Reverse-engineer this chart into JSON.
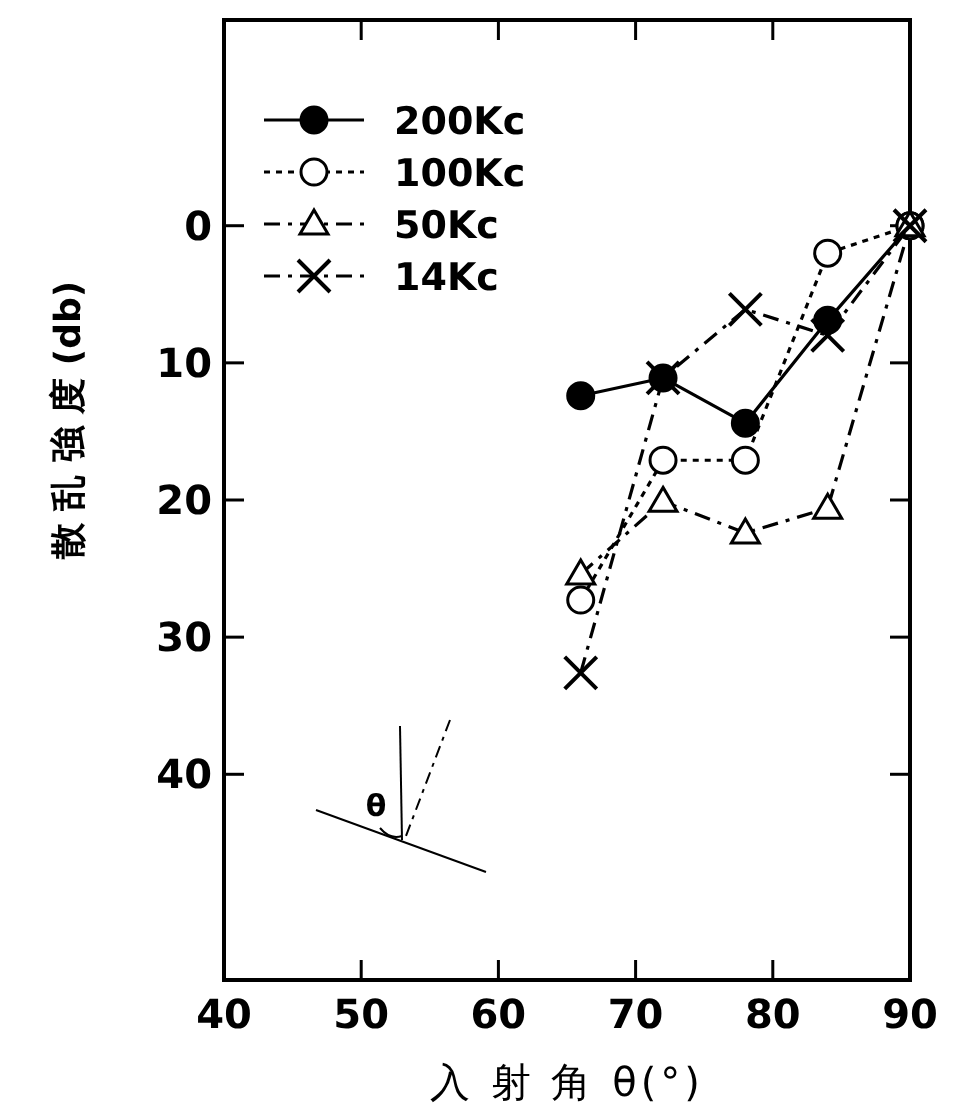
{
  "chart_data": {
    "type": "line",
    "xlabel": "入 射 角 θ(°)",
    "ylabel": "散 乱 強 度 (db)",
    "xlim": [
      40,
      90
    ],
    "xticks": [
      40,
      50,
      60,
      70,
      80,
      90
    ],
    "ylim": [
      55,
      -15
    ],
    "yticks": [
      0,
      10,
      20,
      30,
      40
    ],
    "x": [
      66,
      72,
      78,
      84,
      90
    ],
    "series": [
      {
        "name": "200Kc",
        "color": "#000000",
        "colors": [
          "#000000",
          "#000000",
          "#000000",
          "#000000",
          "#000000"
        ],
        "marker": "circle",
        "line_style": "solid",
        "values": [
          12.4,
          11.1,
          14.4,
          6.9,
          0
        ]
      },
      {
        "name": "100Kc",
        "color": "#000000",
        "colors": [
          "#ffffff",
          "#ffffff",
          "#ffffff",
          "#ffffff",
          "#ffffff"
        ],
        "marker": "circle",
        "line_style": "dotted",
        "values": [
          27.3,
          17.1,
          17.1,
          2.0,
          0
        ]
      },
      {
        "name": "50Kc",
        "color": "#000000",
        "colors": [
          "#ffffff",
          "#ffffff",
          "#ffffff",
          "#ffffff",
          "#ffffff"
        ],
        "marker": "triangle",
        "line_style": "dashed",
        "values": [
          25.4,
          20.1,
          22.4,
          20.6,
          0
        ]
      },
      {
        "name": "14Kc",
        "color": "#000000",
        "marker": "cross",
        "line_style": "dashed",
        "values": [
          32.6,
          11.1,
          6.1,
          8.0,
          0
        ]
      }
    ],
    "legend": "top left",
    "annotations": [
      "θ"
    ]
  }
}
